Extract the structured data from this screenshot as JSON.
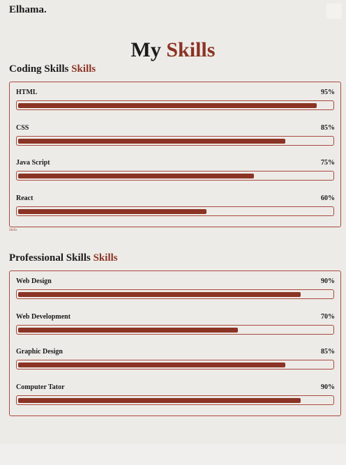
{
  "header": {
    "logo": "Elhama."
  },
  "title": {
    "main": "My",
    "accent": "Skills"
  },
  "sections": [
    {
      "title": "Coding Skills",
      "accent": "Skills",
      "footnote": "Skills",
      "skills": [
        {
          "name": "HTML",
          "value": 95,
          "value_label": "95%"
        },
        {
          "name": "CSS",
          "value": 85,
          "value_label": "85%"
        },
        {
          "name": "Java Script",
          "value": 75,
          "value_label": "75%"
        },
        {
          "name": "React",
          "value": 60,
          "value_label": "60%"
        }
      ]
    },
    {
      "title": "Professional Skills",
      "accent": "Skills",
      "skills": [
        {
          "name": "Web Design",
          "value": 90,
          "value_label": "90%"
        },
        {
          "name": "Web Development",
          "value": 70,
          "value_label": "70%"
        },
        {
          "name": "Graphic Design",
          "value": 85,
          "value_label": "85%"
        },
        {
          "name": "Computer Tator",
          "value": 90,
          "value_label": "90%"
        }
      ]
    }
  ]
}
